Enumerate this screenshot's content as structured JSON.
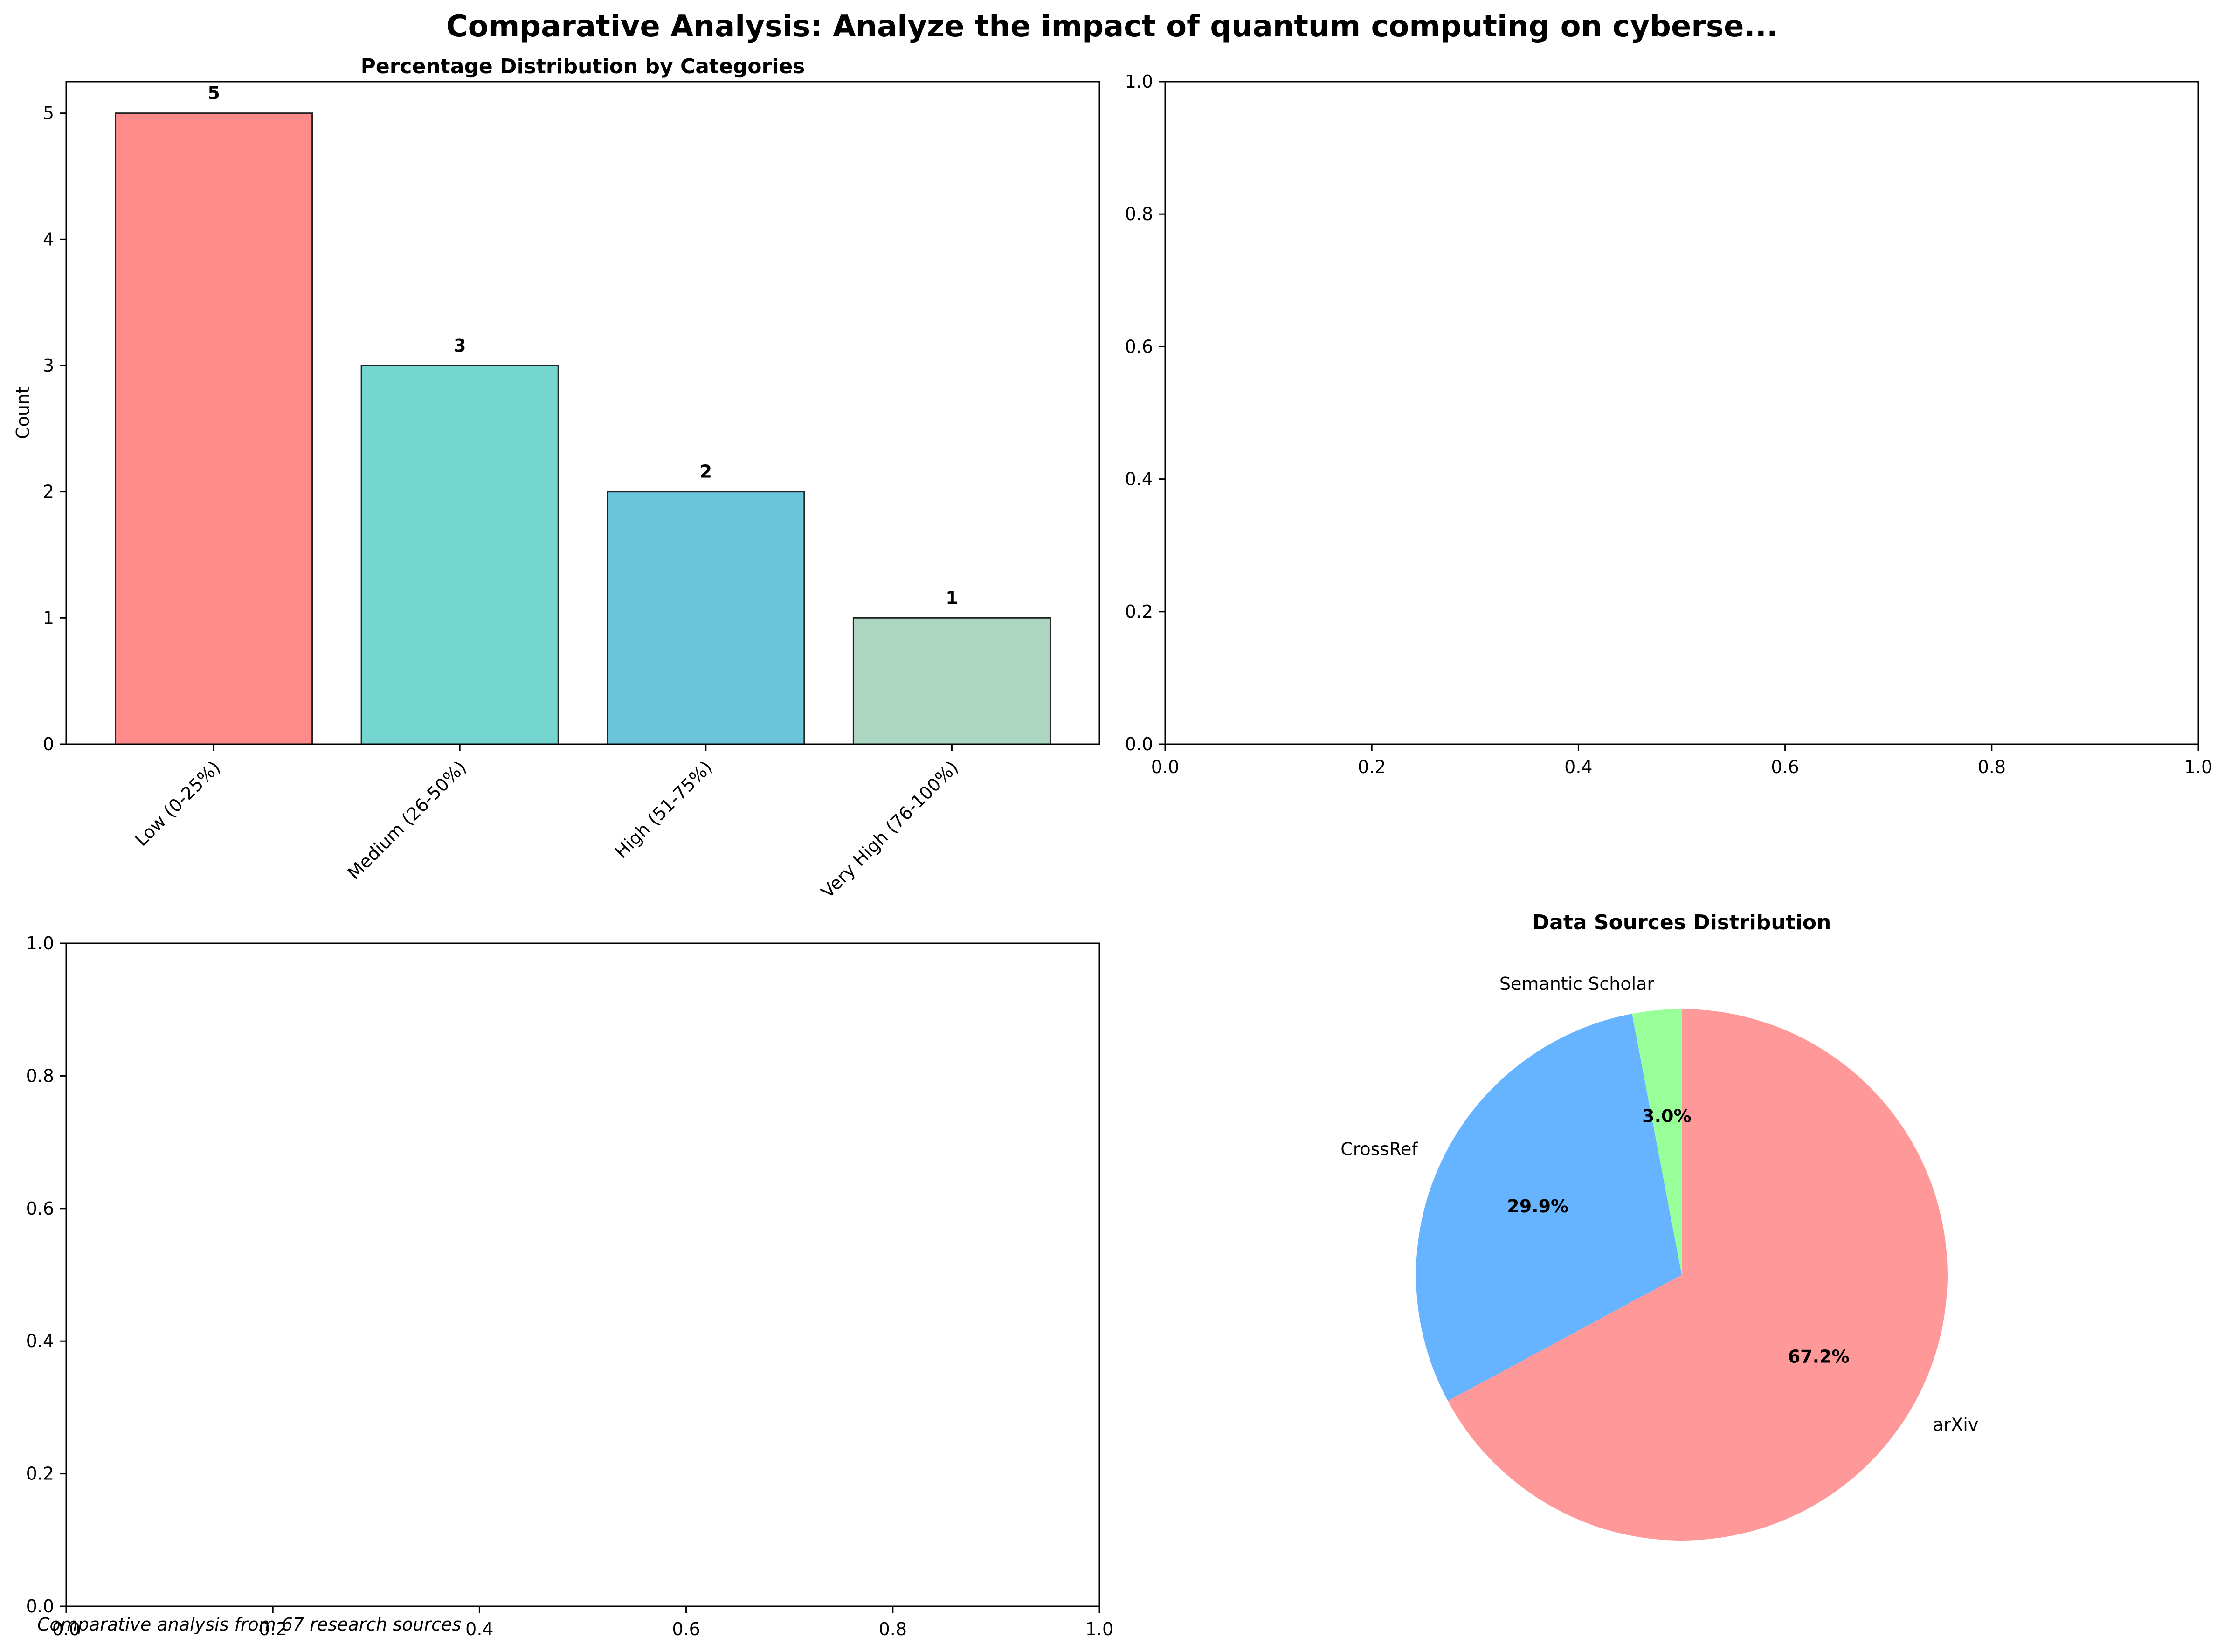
{
  "figure": {
    "suptitle": "Comparative Analysis: Analyze the impact of quantum computing on cyberse...",
    "footnote": "Comparative analysis from 67 research sources"
  },
  "chart_data": [
    {
      "type": "bar",
      "title": "Percentage Distribution by Categories",
      "xlabel": "",
      "ylabel": "Count",
      "categories": [
        "Low (0-25%)",
        "Medium (26-50%)",
        "High (51-75%)",
        "Very High (76-100%)"
      ],
      "values": [
        5,
        3,
        2,
        1
      ],
      "data_labels": [
        "5",
        "3",
        "2",
        "1"
      ],
      "colors": [
        "#ff8a8a",
        "#74d6cf",
        "#6ac5da",
        "#acd6c2"
      ],
      "edgecolor": "#222222",
      "ylim": [
        0,
        5.25
      ],
      "yticks": [
        0,
        1,
        2,
        3,
        4,
        5
      ],
      "ytick_labels": [
        "0",
        "1",
        "2",
        "3",
        "4",
        "5"
      ],
      "xtick_rotation": 45,
      "grid": false
    },
    {
      "type": "scatter",
      "title": "",
      "xlabel": "",
      "ylabel": "",
      "xlim": [
        0,
        1
      ],
      "ylim": [
        0,
        1
      ],
      "xticks": [
        0,
        0.2,
        0.4,
        0.6,
        0.8,
        1
      ],
      "xtick_labels": [
        "0.0",
        "0.2",
        "0.4",
        "0.6",
        "0.8",
        "1.0"
      ],
      "yticks": [
        0,
        0.2,
        0.4,
        0.6,
        0.8,
        1
      ],
      "ytick_labels": [
        "0.0",
        "0.2",
        "0.4",
        "0.6",
        "0.8",
        "1.0"
      ],
      "series": [],
      "grid": false
    },
    {
      "type": "scatter",
      "title": "",
      "xlabel": "",
      "ylabel": "",
      "xlim": [
        0,
        1
      ],
      "ylim": [
        0,
        1
      ],
      "xticks": [
        0,
        0.2,
        0.4,
        0.6,
        0.8,
        1
      ],
      "xtick_labels": [
        "0.0",
        "0.2",
        "0.4",
        "0.6",
        "0.8",
        "1.0"
      ],
      "yticks": [
        0,
        0.2,
        0.4,
        0.6,
        0.8,
        1
      ],
      "ytick_labels": [
        "0.0",
        "0.2",
        "0.4",
        "0.6",
        "0.8",
        "1.0"
      ],
      "series": [],
      "grid": false
    },
    {
      "type": "pie",
      "title": "Data Sources Distribution",
      "slices": [
        {
          "label": "arXiv",
          "value": 67.2,
          "pct_label": "67.2%",
          "color": "#ff9999"
        },
        {
          "label": "CrossRef",
          "value": 29.9,
          "pct_label": "29.9%",
          "color": "#66b3ff"
        },
        {
          "label": "Semantic Scholar",
          "value": 3.0,
          "pct_label": "3.0%",
          "color": "#99ff99"
        }
      ],
      "start_angle": 90,
      "direction": "clockwise"
    }
  ]
}
